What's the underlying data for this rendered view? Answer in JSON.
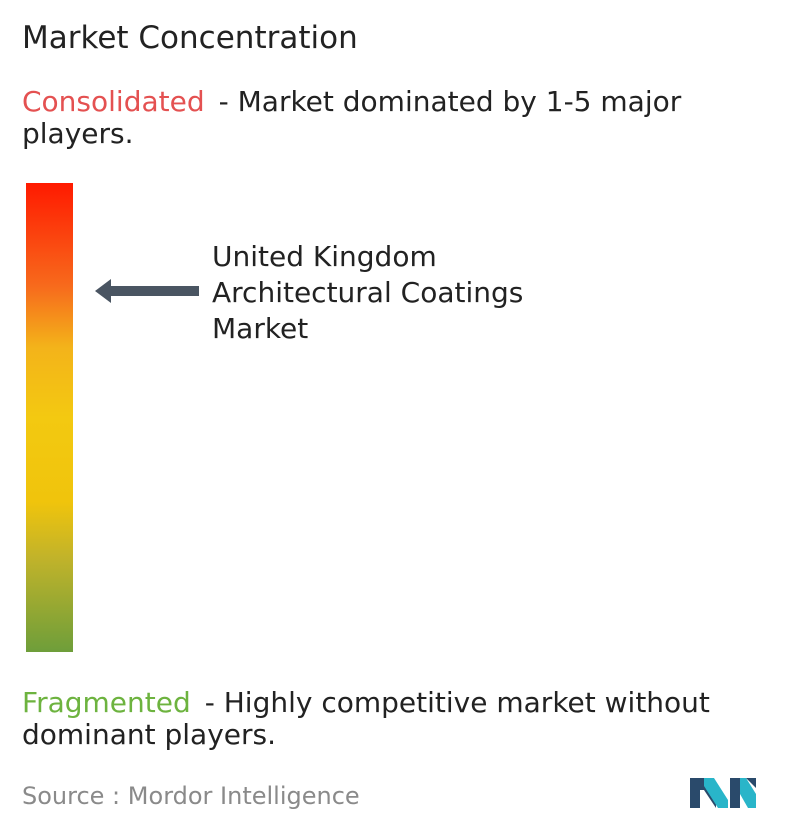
{
  "title": "Market Concentration",
  "consolidated": {
    "term": "Consolidated",
    "description": "- Market dominated by 1-5 major players.",
    "color": "#e45151"
  },
  "fragmented": {
    "term": "Fragmented",
    "description": "- Highly competitive market without dominant players.",
    "color": "#6db33f"
  },
  "market": {
    "lines": [
      "United Kingdom",
      "Architectural Coatings",
      "Market"
    ],
    "level": 0.22
  },
  "gradient_colors": [
    "#ff1a00",
    "#f76a1c",
    "#f3c911",
    "#6e9e3a"
  ],
  "source": {
    "label": "Source :",
    "name": "Mordor Intelligence"
  },
  "logo": {
    "icon": "mordor-intelligence-logo",
    "colors": [
      "#2a4a6b",
      "#29b5c9"
    ]
  }
}
